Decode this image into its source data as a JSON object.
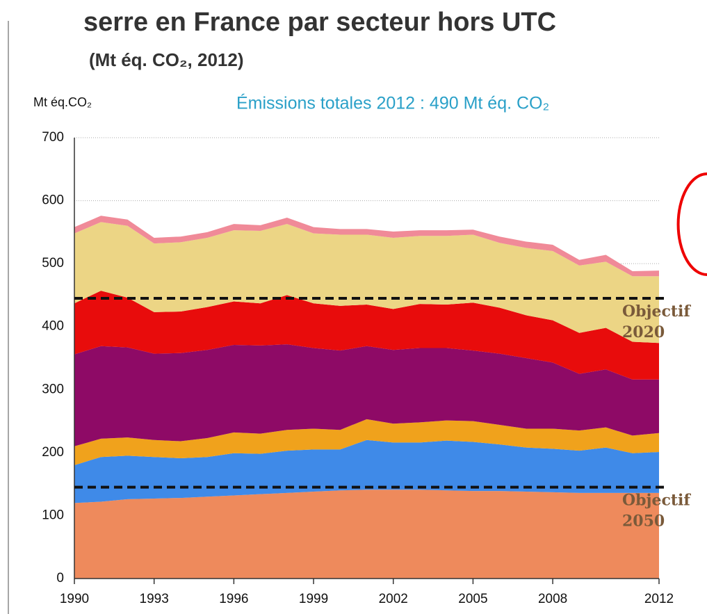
{
  "chart_data": {
    "type": "stacked-area",
    "title": "serre en France par secteur hors UTC",
    "subtitle": "(Mt éq. CO₂, 2012)",
    "y_label": "Mt éq.CO₂",
    "annotation": "Émissions totales 2012 : 490 Mt éq. CO₂",
    "x": [
      1990,
      1991,
      1992,
      1993,
      1994,
      1995,
      1996,
      1997,
      1998,
      1999,
      2000,
      2001,
      2002,
      2003,
      2004,
      2005,
      2006,
      2007,
      2008,
      2009,
      2010,
      2011,
      2012
    ],
    "xlim": [
      1990,
      2012
    ],
    "xticks": [
      1990,
      1993,
      1996,
      1999,
      2002,
      2005,
      2008,
      2012
    ],
    "ylim": [
      0,
      700
    ],
    "yticks": [
      0,
      100,
      200,
      300,
      400,
      500,
      600,
      700
    ],
    "grid": true,
    "series": [
      {
        "color": "#ee8a5c",
        "values": [
          120,
          122,
          126,
          127,
          128,
          130,
          132,
          134,
          136,
          138,
          140,
          141,
          141,
          141,
          140,
          139,
          139,
          138,
          137,
          136,
          136,
          136,
          136
        ]
      },
      {
        "color": "#3f8ae8",
        "values": [
          60,
          71,
          69,
          66,
          63,
          63,
          67,
          64,
          67,
          67,
          65,
          79,
          75,
          75,
          79,
          78,
          74,
          70,
          69,
          67,
          72,
          63,
          65
        ]
      },
      {
        "color": "#f0a21c",
        "values": [
          30,
          29,
          29,
          27,
          27,
          30,
          33,
          32,
          33,
          33,
          31,
          33,
          30,
          32,
          32,
          33,
          31,
          30,
          32,
          32,
          32,
          28,
          30
        ]
      },
      {
        "color": "#8e0a66",
        "values": [
          146,
          147,
          143,
          137,
          140,
          140,
          139,
          140,
          136,
          128,
          126,
          116,
          117,
          118,
          115,
          112,
          113,
          112,
          105,
          90,
          92,
          89,
          85
        ]
      },
      {
        "color": "#e80c0c",
        "values": [
          81,
          88,
          79,
          66,
          66,
          68,
          69,
          67,
          78,
          71,
          71,
          66,
          65,
          70,
          69,
          76,
          73,
          68,
          67,
          65,
          66,
          60,
          58
        ]
      },
      {
        "color": "#ecd585",
        "values": [
          111,
          109,
          114,
          109,
          110,
          110,
          113,
          115,
          113,
          111,
          113,
          111,
          113,
          108,
          109,
          108,
          103,
          107,
          110,
          107,
          105,
          104,
          106
        ]
      },
      {
        "color": "#f08a98",
        "values": [
          10,
          10,
          10,
          9,
          9,
          9,
          10,
          9,
          10,
          10,
          9,
          9,
          10,
          9,
          9,
          8,
          10,
          10,
          10,
          9,
          11,
          8,
          9
        ]
      }
    ],
    "reference_lines": [
      {
        "value": 445,
        "label": [
          "Objectif",
          "2020"
        ]
      },
      {
        "value": 145,
        "label": [
          "Objectif",
          "2050"
        ]
      }
    ]
  }
}
